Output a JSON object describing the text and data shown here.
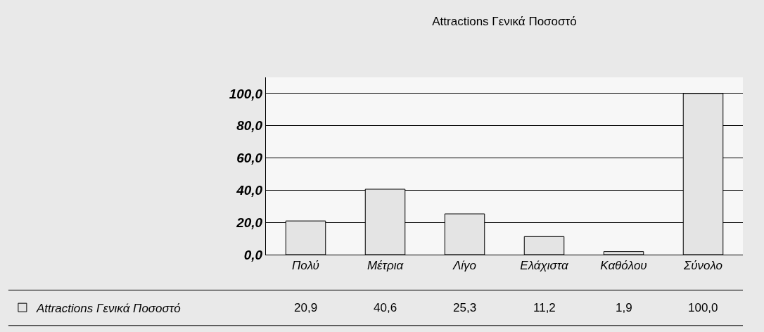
{
  "chart_data": {
    "type": "bar",
    "title": "Attractions Γενικά Ποσοστό",
    "categories": [
      "Πολύ",
      "Μέτρια",
      "Λίγο",
      "Ελάχιστα",
      "Καθόλου",
      "Σύνολο"
    ],
    "series": [
      {
        "name": "Attractions Γενικά Ποσοστό",
        "color": "#e4e4e4",
        "values": [
          20.9,
          40.6,
          25.3,
          11.2,
          1.9,
          100.0
        ],
        "value_labels": [
          "20,9",
          "40,6",
          "25,3",
          "11,2",
          "1,9",
          "100,0"
        ]
      }
    ],
    "ylim": [
      0,
      110
    ],
    "yticks": [
      {
        "value": 0,
        "label": "0,0"
      },
      {
        "value": 20,
        "label": "20,0"
      },
      {
        "value": 40,
        "label": "40,0"
      },
      {
        "value": 60,
        "label": "60,0"
      },
      {
        "value": 80,
        "label": "80,0"
      },
      {
        "value": 100,
        "label": "100,0"
      }
    ],
    "grid": "y",
    "legend": "bottom left"
  }
}
